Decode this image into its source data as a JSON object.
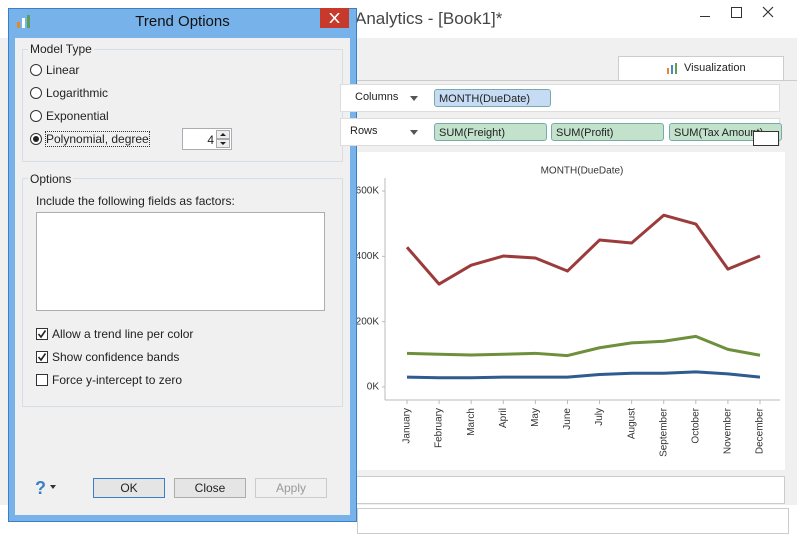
{
  "window": {
    "title": "Analytics - [Book1]*",
    "tab": "Visualization",
    "shelves": [
      {
        "label": "Columns",
        "pills": [
          "MONTH(DueDate)"
        ]
      },
      {
        "label": "Rows",
        "pills": [
          "SUM(Freight)",
          "SUM(Profit)",
          "SUM(Tax Amount)"
        ]
      }
    ]
  },
  "chart_data": {
    "type": "line",
    "title": "MONTH(DueDate)",
    "categories": [
      "January",
      "February",
      "March",
      "April",
      "May",
      "June",
      "July",
      "August",
      "September",
      "October",
      "November",
      "December"
    ],
    "series": [
      {
        "color": "#9b3b3b",
        "values": [
          428000,
          315000,
          373000,
          401000,
          395000,
          355000,
          450000,
          441000,
          526000,
          499000,
          361000,
          401000
        ]
      },
      {
        "color": "#6e8f3c",
        "values": [
          103000,
          100000,
          98000,
          100000,
          103000,
          96000,
          120000,
          135000,
          140000,
          155000,
          115000,
          97000
        ]
      },
      {
        "color": "#2f5c8f",
        "values": [
          30000,
          28000,
          28000,
          30000,
          30000,
          30000,
          38000,
          42000,
          42000,
          46000,
          40000,
          30000
        ]
      }
    ],
    "ylim": [
      -40000,
      640000
    ],
    "yticks": [
      {
        "value": 0,
        "label": "0K"
      },
      {
        "value": 200000,
        "label": "200K"
      },
      {
        "value": 400000,
        "label": "400K"
      },
      {
        "value": 600000,
        "label": "600K"
      }
    ],
    "grid": false
  },
  "dialog": {
    "title": "Trend Options",
    "model_type": {
      "label": "Model Type",
      "options": [
        "Linear",
        "Logarithmic",
        "Exponential",
        "Polynomial, degree"
      ],
      "selected": 3,
      "degree": 4
    },
    "options": {
      "label": "Options",
      "factors_label": "Include the following fields as factors:",
      "checkboxes": [
        {
          "label": "Allow a trend line per color",
          "checked": true
        },
        {
          "label": "Show confidence bands",
          "checked": true
        },
        {
          "label": "Force y-intercept to zero",
          "checked": false
        }
      ]
    },
    "help": "?",
    "buttons": [
      "OK",
      "Close",
      "Apply"
    ]
  }
}
